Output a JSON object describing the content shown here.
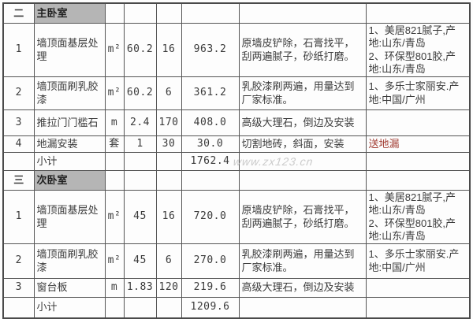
{
  "watermark": "www.zx123.cn",
  "colors": {
    "section_header_bg": "#b5b5b5",
    "highlight_red": "#a13c32",
    "border": "#555555",
    "text": "#3b3b3b"
  },
  "table": {
    "sections": [
      {
        "index_label": "二",
        "title": "主卧室",
        "rows": [
          {
            "no": "1",
            "name": "墙顶面基层处理",
            "unit": "m²",
            "qty": "60.2",
            "price": "16",
            "total": "963.2",
            "desc": "原墙皮铲除，石膏找平，刮两遍腻子，砂纸打磨。",
            "materials": [
              "1、美居821腻子,产地:山东/青岛",
              "2、环保型801胶,产地:山东/青岛"
            ],
            "materials_red": false
          },
          {
            "no": "2",
            "name": "墙顶面刷乳胶漆",
            "unit": "m²",
            "qty": "60.2",
            "price": "6",
            "total": "361.2",
            "desc": "乳胶漆刷两遍，用量达到厂家标准。",
            "materials": [
              "1、多乐士家丽安.产地:中国/广州"
            ],
            "materials_red": false
          },
          {
            "no": "3",
            "name": "推拉门门槛石",
            "unit": "m",
            "qty": "2.4",
            "price": "170",
            "total": "408.0",
            "desc": "高级大理石，倒边及安装",
            "materials": [],
            "materials_red": false
          },
          {
            "no": "4",
            "name": "地漏安装",
            "unit": "套",
            "qty": "1",
            "price": "30",
            "total": "30.0",
            "desc": "切割地砖，斜面，安装",
            "materials": [
              "送地漏"
            ],
            "materials_red": true
          }
        ],
        "subtotal_label": "小计",
        "subtotal_value": "1762.4"
      },
      {
        "index_label": "三",
        "title": "次卧室",
        "rows": [
          {
            "no": "1",
            "name": "墙顶面基层处理",
            "unit": "m²",
            "qty": "45",
            "price": "16",
            "total": "720.0",
            "desc": "原墙皮铲除，石膏找平，刮两遍腻子，砂纸打磨。",
            "materials": [
              "1、美居821腻子,产地:山东/青岛",
              "2、环保型801胶,产地:山东/青岛"
            ],
            "materials_red": false
          },
          {
            "no": "2",
            "name": "墙顶面刷乳胶漆",
            "unit": "m²",
            "qty": "45",
            "price": "6",
            "total": "270.0",
            "desc": "乳胶漆刷两遍，用量达到厂家标准。",
            "materials": [
              "1、多乐士家丽安.产地:中国/广州"
            ],
            "materials_red": false
          },
          {
            "no": "3",
            "name": "窗台板",
            "unit": "m",
            "qty": "1.83",
            "price": "120",
            "total": "219.6",
            "desc": "高级大理石，倒边及安装",
            "materials": [],
            "materials_red": false
          }
        ],
        "subtotal_label": "小计",
        "subtotal_value": "1209.6"
      }
    ]
  }
}
